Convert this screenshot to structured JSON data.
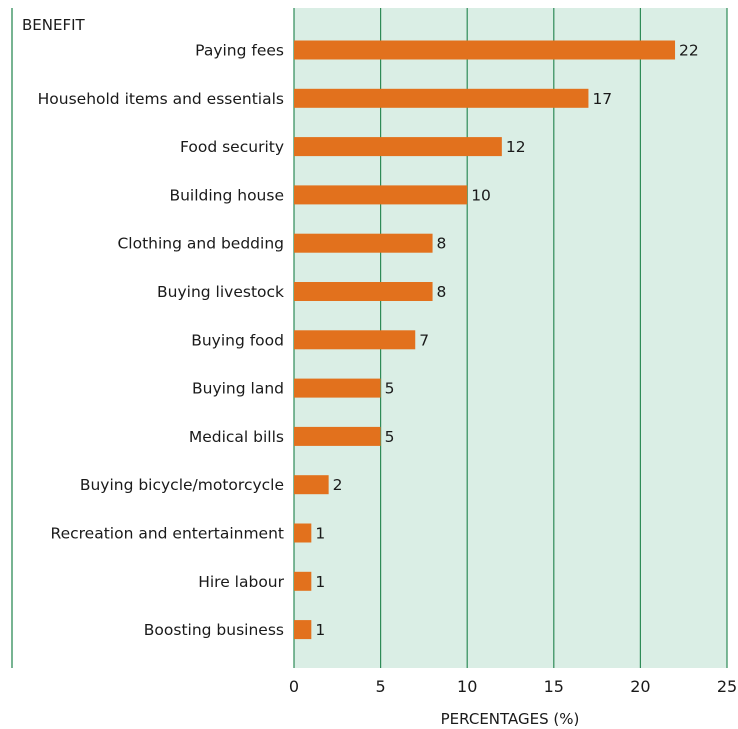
{
  "chart_data": {
    "type": "bar",
    "orientation": "horizontal",
    "category_axis_label": "BENEFIT",
    "xlabel": "PERCENTAGES (%)",
    "xlim": [
      0,
      25
    ],
    "xticks": [
      0,
      5,
      10,
      15,
      20,
      25
    ],
    "grid": true,
    "categories": [
      "Paying fees",
      "Household items and essentials",
      "Food security",
      "Building house",
      "Clothing and bedding",
      "Buying livestock",
      "Buying food",
      "Buying land",
      "Medical bills",
      "Buying bicycle/motorcycle",
      "Recreation and entertainment",
      "Hire labour",
      "Boosting business"
    ],
    "values": [
      22,
      17,
      12,
      10,
      8,
      8,
      7,
      5,
      5,
      2,
      1,
      1,
      1
    ],
    "value_labels": [
      "22",
      "17",
      "12",
      "10",
      "8",
      "8",
      "7",
      "5",
      "5",
      "2",
      "1",
      "1",
      "1"
    ],
    "colors": {
      "bar": "#e2711d",
      "plot_background": "#daeee5",
      "gridline": "#2e8b57",
      "left_rule": "#2e8b57"
    }
  }
}
